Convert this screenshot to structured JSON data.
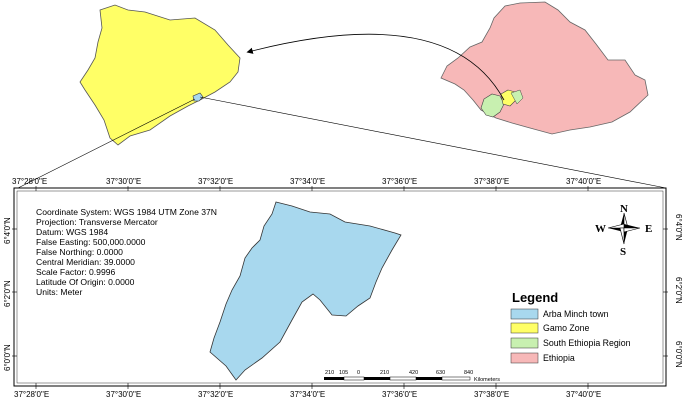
{
  "coordinate_info": [
    "Coordinate System: WGS 1984 UTM Zone 37N",
    "Projection: Transverse Mercator",
    "Datum: WGS 1984",
    "False Easting: 500,000.0000",
    "False Northing: 0.0000",
    "Central Meridian: 39.0000",
    "Scale Factor: 0.9996",
    "Latitude Of Origin: 0.0000",
    "Units: Meter"
  ],
  "x_ticks_top": [
    "37°28'0\"E",
    "37°30'0\"E",
    "37°32'0\"E",
    "37°34'0\"E",
    "37°36'0\"E",
    "37°38'0\"E",
    "37°40'0\"E"
  ],
  "x_ticks_bottom": [
    "37°28'0\"E",
    "37°30'0\"E",
    "37°32'0\"E",
    "37°34'0\"E",
    "37°36'0\"E",
    "37°38'0\"E",
    "37°40'0\"E"
  ],
  "y_ticks": [
    "6°4'0\"N",
    "6°2'0\"N",
    "6°0'0\"N"
  ],
  "north_arrow": {
    "n": "N",
    "s": "S",
    "e": "E",
    "w": "W"
  },
  "legend": {
    "title": "Legend",
    "items": [
      {
        "label": "Arba Minch town",
        "color": "#a8d8ee"
      },
      {
        "label": "Gamo Zone",
        "color": "#ffff66"
      },
      {
        "label": "South Ethiopia Region",
        "color": "#c8f0b0"
      },
      {
        "label": "Ethiopia",
        "color": "#f7b8b8"
      }
    ]
  },
  "scale_bar": {
    "labels": [
      "210",
      "105",
      "0",
      "210",
      "420",
      "630",
      "840"
    ],
    "unit": "Kilometers"
  },
  "colors": {
    "arba_minch": "#a8d8ee",
    "gamo_zone": "#ffff66",
    "south_region": "#c8f0b0",
    "ethiopia": "#f7b8b8"
  }
}
